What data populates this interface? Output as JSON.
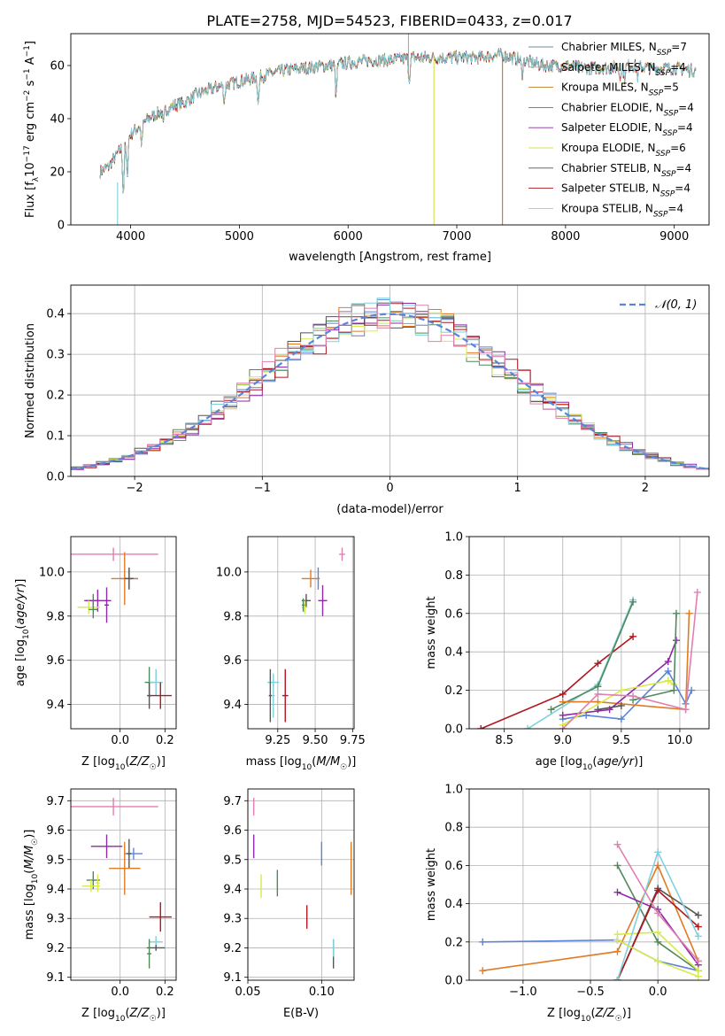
{
  "figure_title": "PLATE=2758, MJD=54523, FIBERID=0433, z=0.017",
  "colors": {
    "chabrier_miles": "#6b8e9e",
    "salpeter_miles": "#a0a0a0",
    "kroupa_miles": "#c07a26",
    "chabrier_elodie": "#4a8a4a",
    "salpeter_elodie": "#8a2aa0",
    "kroupa_elodie": "#d8e04a",
    "chabrier_stelib": "#555555",
    "salpeter_stelib": "#aa1a1a",
    "kroupa_stelib": "#7fd3e0",
    "blue": "#5b84d8",
    "orange": "#e07b24",
    "green": "#4f8a5a",
    "purple": "#8e2aa8",
    "yellow": "#d6ea4a",
    "gray": "#555555",
    "red": "#b0161d",
    "cyan": "#7fd0dd",
    "pink": "#e07fb0"
  },
  "chart_data": [
    {
      "id": "spectrum",
      "type": "line",
      "title": "",
      "xlabel": "wavelength [Angstrom, rest frame]",
      "ylabel": "Flux [f_λ 10^-17 erg cm^-2 s^-1 A^-1]",
      "xlim": [
        3450,
        9320
      ],
      "ylim": [
        0,
        72
      ],
      "xticks": [
        4000,
        5000,
        6000,
        7000,
        8000,
        9000
      ],
      "yticks": [
        0,
        20,
        40,
        60
      ],
      "grid": false,
      "legend_position": "top-right",
      "continuum": {
        "x": [
          3720,
          3800,
          3900,
          4000,
          4100,
          4200,
          4300,
          4400,
          4500,
          4600,
          4800,
          5000,
          5200,
          5400,
          5600,
          5800,
          6000,
          6200,
          6400,
          6600,
          6800,
          7000,
          7200,
          7400,
          7600,
          7800,
          8000,
          8200,
          8400,
          8600,
          8800,
          9000,
          9200
        ],
        "y": [
          20,
          22,
          28,
          34,
          38,
          41,
          43,
          45,
          46,
          49,
          52,
          54,
          56,
          58,
          59,
          60,
          61,
          62,
          62,
          63,
          63,
          63,
          63,
          64,
          62,
          60,
          60,
          59,
          59,
          60,
          59,
          59,
          58
        ]
      },
      "series": [
        {
          "name": "Chabrier MILES, N_SSP=7",
          "color": "#6b8e9e"
        },
        {
          "name": "Salpeter MILES, N_SSP=4",
          "color": "#a0a0a0"
        },
        {
          "name": "Kroupa MILES, N_SSP=5",
          "color": "#c07a26"
        },
        {
          "name": "Chabrier ELODIE, N_SSP=4",
          "color": "#4a8a4a"
        },
        {
          "name": "Salpeter ELODIE, N_SSP=4",
          "color": "#8a2aa0"
        },
        {
          "name": "Kroupa ELODIE, N_SSP=6",
          "color": "#d8e04a"
        },
        {
          "name": "Chabrier STELIB, N_SSP=4",
          "color": "#555555"
        },
        {
          "name": "Salpeter STELIB, N_SSP=4",
          "color": "#aa1a1a"
        },
        {
          "name": "Kroupa STELIB, N_SSP=4",
          "color": "#7fd3e0"
        }
      ]
    },
    {
      "id": "residuals",
      "type": "line",
      "title": "",
      "xlabel": "(data-model)/error",
      "ylabel": "Normed distribution",
      "xlim": [
        -2.5,
        2.5
      ],
      "ylim": [
        0,
        0.47
      ],
      "xticks": [
        -2,
        -1,
        0,
        1,
        2
      ],
      "yticks": [
        0.0,
        0.1,
        0.2,
        0.3,
        0.4
      ],
      "grid": true,
      "legend_position": "top-right",
      "gaussian_label": "𝒩(0, 1)",
      "histogram_colors": [
        "#5b84d8",
        "#e07b24",
        "#4f8a5a",
        "#8e2aa8",
        "#d6ea4a",
        "#555555",
        "#b0161d",
        "#7fd0dd",
        "#e07fb0"
      ],
      "bin_width": 0.1,
      "bins_start": -2.5,
      "bins_end": 2.5
    },
    {
      "id": "age_vs_z",
      "type": "scatter",
      "xlabel": "Z [log10(Z/Z☉)]",
      "ylabel": "age  [log10(age/yr)]",
      "xlim": [
        -0.22,
        0.25
      ],
      "ylim": [
        9.29,
        10.16
      ],
      "xticks": [
        0.0,
        0.2
      ],
      "yticks": [
        9.4,
        9.6,
        9.8,
        10.0
      ],
      "grid": true,
      "points": [
        {
          "x": -0.03,
          "y": 10.08,
          "xerr": 0.2,
          "yerr": 0.03,
          "color": "#e07fb0"
        },
        {
          "x": 0.04,
          "y": 9.97,
          "xerr": 0.04,
          "yerr": 0.04,
          "color": "#5b84d8"
        },
        {
          "x": 0.02,
          "y": 9.97,
          "xerr": 0.06,
          "yerr": 0.12,
          "color": "#e07b24"
        },
        {
          "x": 0.04,
          "y": 9.97,
          "xerr": 0.02,
          "yerr": 0.05,
          "color": "#555555"
        },
        {
          "x": -0.12,
          "y": 9.87,
          "xerr": 0.03,
          "yerr": 0.03,
          "color": "#4f8a5a"
        },
        {
          "x": -0.1,
          "y": 9.87,
          "xerr": 0.06,
          "yerr": 0.05,
          "color": "#8e2aa8"
        },
        {
          "x": -0.14,
          "y": 9.84,
          "xerr": 0.05,
          "yerr": 0.03,
          "color": "#d6ea4a"
        },
        {
          "x": -0.12,
          "y": 9.83,
          "xerr": 0.02,
          "yerr": 0.04,
          "color": "#4f8a5a"
        },
        {
          "x": -0.06,
          "y": 9.85,
          "xerr": 0.01,
          "yerr": 0.08,
          "color": "#8e2aa8"
        },
        {
          "x": 0.13,
          "y": 9.5,
          "xerr": 0.02,
          "yerr": 0.07,
          "color": "#4f8a5a"
        },
        {
          "x": 0.16,
          "y": 9.5,
          "xerr": 0.03,
          "yerr": 0.06,
          "color": "#7fd0dd"
        },
        {
          "x": 0.18,
          "y": 9.44,
          "xerr": 0.05,
          "yerr": 0.06,
          "color": "#b0161d"
        },
        {
          "x": 0.13,
          "y": 9.44,
          "xerr": 0.01,
          "yerr": 0.06,
          "color": "#555555"
        }
      ]
    },
    {
      "id": "age_vs_mass",
      "type": "scatter",
      "xlabel": "mass [log10(M/M☉)]",
      "ylabel": "",
      "xlim": [
        9.05,
        9.76
      ],
      "ylim": [
        9.29,
        10.16
      ],
      "xticks": [
        9.25,
        9.5,
        9.75
      ],
      "yticks": [
        9.4,
        9.6,
        9.8,
        10.0
      ],
      "grid": true,
      "points": [
        {
          "x": 9.68,
          "y": 10.08,
          "xerr": 0.02,
          "yerr": 0.03,
          "color": "#e07fb0"
        },
        {
          "x": 9.52,
          "y": 9.97,
          "xerr": 0.01,
          "yerr": 0.05,
          "color": "#5b84d8"
        },
        {
          "x": 9.47,
          "y": 9.97,
          "xerr": 0.06,
          "yerr": 0.04,
          "color": "#e07b24"
        },
        {
          "x": 9.44,
          "y": 9.87,
          "xerr": 0.03,
          "yerr": 0.03,
          "color": "#555555"
        },
        {
          "x": 9.43,
          "y": 9.84,
          "xerr": 0.02,
          "yerr": 0.03,
          "color": "#d6ea4a"
        },
        {
          "x": 9.42,
          "y": 9.85,
          "xerr": 0.01,
          "yerr": 0.03,
          "color": "#4f8a5a"
        },
        {
          "x": 9.55,
          "y": 9.87,
          "xerr": 0.03,
          "yerr": 0.07,
          "color": "#8e2aa8"
        },
        {
          "x": 9.22,
          "y": 9.5,
          "xerr": 0.04,
          "yerr": 0.03,
          "color": "#7fd0dd"
        },
        {
          "x": 9.2,
          "y": 9.44,
          "xerr": 0.01,
          "yerr": 0.12,
          "color": "#555555"
        },
        {
          "x": 9.22,
          "y": 9.44,
          "xerr": 0.01,
          "yerr": 0.1,
          "color": "#7fd0dd"
        },
        {
          "x": 9.3,
          "y": 9.44,
          "xerr": 0.02,
          "yerr": 0.12,
          "color": "#b0161d"
        }
      ]
    },
    {
      "id": "weight_vs_age",
      "type": "line",
      "xlabel": "age  [log10(age/yr)]",
      "ylabel": "mass weight",
      "xlim": [
        8.2,
        10.25
      ],
      "ylim": [
        0,
        1.0
      ],
      "xticks": [
        8.5,
        9.0,
        9.5,
        10.0
      ],
      "yticks": [
        0.0,
        0.2,
        0.4,
        0.6,
        0.8,
        1.0
      ],
      "grid": true,
      "series": [
        {
          "color": "#b0161d",
          "x": [
            8.3,
            9.0,
            9.3,
            9.6
          ],
          "y": [
            0.0,
            0.18,
            0.34,
            0.48
          ]
        },
        {
          "color": "#7fd0dd",
          "x": [
            8.7,
            9.3,
            9.6
          ],
          "y": [
            0.0,
            0.23,
            0.67
          ]
        },
        {
          "color": "#4f8a5a",
          "x": [
            8.9,
            9.3,
            9.6
          ],
          "y": [
            0.1,
            0.22,
            0.66
          ]
        },
        {
          "color": "#5b84d8",
          "x": [
            9.0,
            9.2,
            9.5,
            9.9,
            10.05,
            10.1
          ],
          "y": [
            0.05,
            0.07,
            0.05,
            0.3,
            0.13,
            0.2
          ]
        },
        {
          "color": "#e07b24",
          "x": [
            9.0,
            9.3,
            10.05,
            10.08
          ],
          "y": [
            0.14,
            0.14,
            0.1,
            0.6
          ]
        },
        {
          "color": "#8e2aa8",
          "x": [
            9.0,
            9.4,
            9.9,
            9.97
          ],
          "y": [
            0.07,
            0.1,
            0.35,
            0.46
          ]
        },
        {
          "color": "#d6ea4a",
          "x": [
            9.0,
            9.5,
            9.9,
            9.95
          ],
          "y": [
            0.02,
            0.2,
            0.25,
            0.23
          ]
        },
        {
          "color": "#4f8a5a",
          "x": [
            9.6,
            9.95,
            9.97
          ],
          "y": [
            0.15,
            0.2,
            0.6
          ]
        },
        {
          "color": "#e07fb0",
          "x": [
            9.0,
            9.3,
            9.6,
            10.05,
            10.15
          ],
          "y": [
            0.0,
            0.18,
            0.17,
            0.1,
            0.71
          ]
        },
        {
          "color": "#555555",
          "x": [
            9.3,
            9.5
          ],
          "y": [
            0.1,
            0.12
          ]
        }
      ]
    },
    {
      "id": "mass_vs_z",
      "type": "scatter",
      "xlabel": "Z [log10(Z/Z☉)]",
      "ylabel": "mass [log10(M/M☉)]",
      "xlim": [
        -0.22,
        0.25
      ],
      "ylim": [
        9.09,
        9.74
      ],
      "xticks": [
        0.0,
        0.2
      ],
      "yticks": [
        9.1,
        9.2,
        9.3,
        9.4,
        9.5,
        9.6,
        9.7
      ],
      "grid": true,
      "points": [
        {
          "x": -0.03,
          "y": 9.68,
          "xerr": 0.2,
          "yerr": 0.03,
          "color": "#e07fb0"
        },
        {
          "x": -0.06,
          "y": 9.545,
          "xerr": 0.07,
          "yerr": 0.04,
          "color": "#8e2aa8"
        },
        {
          "x": 0.06,
          "y": 9.52,
          "xerr": 0.04,
          "yerr": 0.02,
          "color": "#5b84d8"
        },
        {
          "x": 0.04,
          "y": 9.52,
          "xerr": 0.01,
          "yerr": 0.05,
          "color": "#555555"
        },
        {
          "x": 0.02,
          "y": 9.47,
          "xerr": 0.07,
          "yerr": 0.09,
          "color": "#e07b24"
        },
        {
          "x": -0.12,
          "y": 9.43,
          "xerr": 0.03,
          "yerr": 0.03,
          "color": "#4f8a5a"
        },
        {
          "x": -0.13,
          "y": 9.41,
          "xerr": 0.04,
          "yerr": 0.02,
          "color": "#d6ea4a"
        },
        {
          "x": -0.1,
          "y": 9.42,
          "xerr": 0.01,
          "yerr": 0.03,
          "color": "#d6ea4a"
        },
        {
          "x": 0.18,
          "y": 9.305,
          "xerr": 0.05,
          "yerr": 0.05,
          "color": "#b0161d"
        },
        {
          "x": 0.16,
          "y": 9.22,
          "xerr": 0.03,
          "yerr": 0.02,
          "color": "#7fd0dd"
        },
        {
          "x": 0.16,
          "y": 9.2,
          "xerr": 0.04,
          "yerr": 0.01,
          "color": "#555555"
        },
        {
          "x": 0.13,
          "y": 9.18,
          "xerr": 0.01,
          "yerr": 0.05,
          "color": "#4f8a5a"
        }
      ]
    },
    {
      "id": "mass_vs_ebv",
      "type": "scatter",
      "xlabel": "E(B-V)",
      "ylabel": "",
      "xlim": [
        0.05,
        0.122
      ],
      "ylim": [
        9.09,
        9.74
      ],
      "xticks": [
        0.05,
        0.1
      ],
      "yticks": [
        9.1,
        9.2,
        9.3,
        9.4,
        9.5,
        9.6,
        9.7
      ],
      "grid": true,
      "points": [
        {
          "x": 0.054,
          "y": 9.68,
          "xerr": 0,
          "yerr": 0.03,
          "color": "#e07fb0"
        },
        {
          "x": 0.054,
          "y": 9.545,
          "xerr": 0,
          "yerr": 0.04,
          "color": "#8e2aa8"
        },
        {
          "x": 0.1,
          "y": 9.52,
          "xerr": 0,
          "yerr": 0.04,
          "color": "#5b84d8"
        },
        {
          "x": 0.12,
          "y": 9.47,
          "xerr": 0,
          "yerr": 0.09,
          "color": "#e07b24"
        },
        {
          "x": 0.07,
          "y": 9.42,
          "xerr": 0,
          "yerr": 0.045,
          "color": "#4f8a5a"
        },
        {
          "x": 0.059,
          "y": 9.41,
          "xerr": 0,
          "yerr": 0.04,
          "color": "#d6ea4a"
        },
        {
          "x": 0.09,
          "y": 9.305,
          "xerr": 0,
          "yerr": 0.04,
          "color": "#b0161d"
        },
        {
          "x": 0.108,
          "y": 9.18,
          "xerr": 0,
          "yerr": 0.05,
          "color": "#555555"
        },
        {
          "x": 0.108,
          "y": 9.2,
          "xerr": 0,
          "yerr": 0.03,
          "color": "#7fd0dd"
        }
      ]
    },
    {
      "id": "weight_vs_z",
      "type": "line",
      "xlabel": "Z [log10(Z/Z☉)]",
      "ylabel": "mass weight",
      "xlim": [
        -1.4,
        0.38
      ],
      "ylim": [
        0,
        1.0
      ],
      "xticks": [
        -1.0,
        -0.5,
        0.0
      ],
      "yticks": [
        0.0,
        0.2,
        0.4,
        0.6,
        0.8,
        1.0
      ],
      "grid": true,
      "series": [
        {
          "color": "#5b84d8",
          "x": [
            -1.3,
            -0.3,
            0.0,
            0.3
          ],
          "y": [
            0.2,
            0.21,
            0.1,
            0.05
          ]
        },
        {
          "color": "#e07b24",
          "x": [
            -1.3,
            -0.3,
            0.0,
            0.3
          ],
          "y": [
            0.05,
            0.15,
            0.6,
            0.1
          ]
        },
        {
          "color": "#4f8a5a",
          "x": [
            -0.3,
            0.0,
            0.3
          ],
          "y": [
            0.6,
            0.2,
            0.05
          ]
        },
        {
          "color": "#8e2aa8",
          "x": [
            -0.3,
            0.0,
            0.3
          ],
          "y": [
            0.46,
            0.37,
            0.08
          ]
        },
        {
          "color": "#d6ea4a",
          "x": [
            -0.3,
            0.0,
            0.3
          ],
          "y": [
            0.24,
            0.25,
            0.05
          ]
        },
        {
          "color": "#555555",
          "x": [
            -0.3,
            0.0,
            0.3
          ],
          "y": [
            0.0,
            0.48,
            0.34
          ]
        },
        {
          "color": "#b0161d",
          "x": [
            -0.3,
            0.0,
            0.3
          ],
          "y": [
            0.0,
            0.47,
            0.28
          ]
        },
        {
          "color": "#7fd0dd",
          "x": [
            -0.3,
            0.0,
            0.3
          ],
          "y": [
            0.0,
            0.67,
            0.23
          ]
        },
        {
          "color": "#e07fb0",
          "x": [
            -0.3,
            0.0,
            0.3
          ],
          "y": [
            0.71,
            0.35,
            0.1
          ]
        },
        {
          "color": "#d6ea4a",
          "x": [
            -0.3,
            0.0,
            0.3
          ],
          "y": [
            0.21,
            0.1,
            0.02
          ]
        }
      ]
    }
  ]
}
